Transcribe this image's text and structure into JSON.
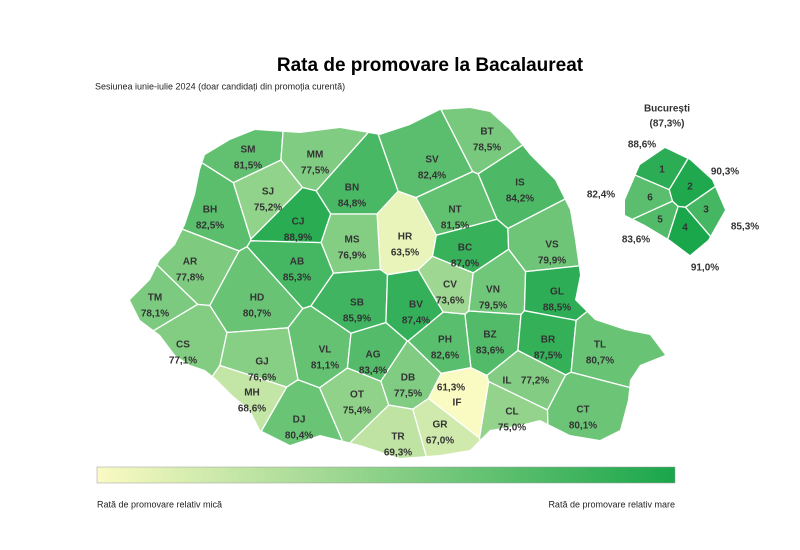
{
  "title": "Rata de promovare la Bacalaureat",
  "subtitle": "Sesiunea iunie-iulie 2024 (doar candidați din promoția curentă)",
  "counties": [
    {
      "code": "SM",
      "value": 81.5,
      "label": "81,5%"
    },
    {
      "code": "MM",
      "value": 77.5,
      "label": "77,5%"
    },
    {
      "code": "BT",
      "value": 78.5,
      "label": "78,5%"
    },
    {
      "code": "SV",
      "value": 82.4,
      "label": "82,4%"
    },
    {
      "code": "BN",
      "value": 84.8,
      "label": "84,8%"
    },
    {
      "code": "SJ",
      "value": 75.2,
      "label": "75,2%"
    },
    {
      "code": "IS",
      "value": 84.2,
      "label": "84,2%"
    },
    {
      "code": "BH",
      "value": 82.5,
      "label": "82,5%"
    },
    {
      "code": "CJ",
      "value": 88.9,
      "label": "88,9%"
    },
    {
      "code": "NT",
      "value": 81.5,
      "label": "81,5%"
    },
    {
      "code": "HR",
      "value": 63.5,
      "label": "63,5%"
    },
    {
      "code": "MS",
      "value": 76.9,
      "label": "76,9%"
    },
    {
      "code": "BC",
      "value": 87.0,
      "label": "87,0%"
    },
    {
      "code": "VS",
      "value": 79.9,
      "label": "79,9%"
    },
    {
      "code": "AR",
      "value": 77.8,
      "label": "77,8%"
    },
    {
      "code": "AB",
      "value": 85.3,
      "label": "85,3%"
    },
    {
      "code": "SB",
      "value": 85.9,
      "label": "85,9%"
    },
    {
      "code": "BV",
      "value": 87.4,
      "label": "87,4%"
    },
    {
      "code": "CV",
      "value": 73.6,
      "label": "73,6%"
    },
    {
      "code": "VN",
      "value": 79.5,
      "label": "79,5%"
    },
    {
      "code": "GL",
      "value": 88.5,
      "label": "88,5%"
    },
    {
      "code": "TM",
      "value": 78.1,
      "label": "78,1%"
    },
    {
      "code": "HD",
      "value": 80.7,
      "label": "80,7%"
    },
    {
      "code": "BZ",
      "value": 83.6,
      "label": "83,6%"
    },
    {
      "code": "BR",
      "value": 87.5,
      "label": "87,5%"
    },
    {
      "code": "CS",
      "value": 77.1,
      "label": "77,1%"
    },
    {
      "code": "VL",
      "value": 81.1,
      "label": "81,1%"
    },
    {
      "code": "AG",
      "value": 83.4,
      "label": "83,4%"
    },
    {
      "code": "DB",
      "value": 77.5,
      "label": "77,5%"
    },
    {
      "code": "PH",
      "value": 82.6,
      "label": "82,6%"
    },
    {
      "code": "TL",
      "value": 80.7,
      "label": "80,7%"
    },
    {
      "code": "GJ",
      "value": 76.6,
      "label": "76,6%"
    },
    {
      "code": "MH",
      "value": 68.6,
      "label": "68,6%"
    },
    {
      "code": "OT",
      "value": 75.4,
      "label": "75,4%"
    },
    {
      "code": "IF",
      "value": 61.3,
      "label": "61,3%"
    },
    {
      "code": "IL",
      "value": 77.2,
      "label": "77,2%"
    },
    {
      "code": "CL",
      "value": 75.0,
      "label": "75,0%"
    },
    {
      "code": "CT",
      "value": 80.1,
      "label": "80,1%"
    },
    {
      "code": "DJ",
      "value": 80.4,
      "label": "80,4%"
    },
    {
      "code": "TR",
      "value": 69.3,
      "label": "69,3%"
    },
    {
      "code": "GR",
      "value": 67.0,
      "label": "67,0%"
    }
  ],
  "bucharest": {
    "name": "București",
    "total": {
      "value": 87.3,
      "label": "(87,3%)"
    },
    "sectors": [
      {
        "number": 1,
        "value": 88.6,
        "label": "88,6%"
      },
      {
        "number": 2,
        "value": 90.3,
        "label": "90,3%"
      },
      {
        "number": 3,
        "value": 85.3,
        "label": "85,3%"
      },
      {
        "number": 4,
        "value": 91.0,
        "label": "91,0%"
      },
      {
        "number": 5,
        "value": 83.6,
        "label": "83,6%"
      },
      {
        "number": 6,
        "value": 82.4,
        "label": "82,4%"
      }
    ]
  },
  "legend": {
    "low": "Rată de promovare relativ mică",
    "high": "Rată de promovare relativ mare"
  }
}
